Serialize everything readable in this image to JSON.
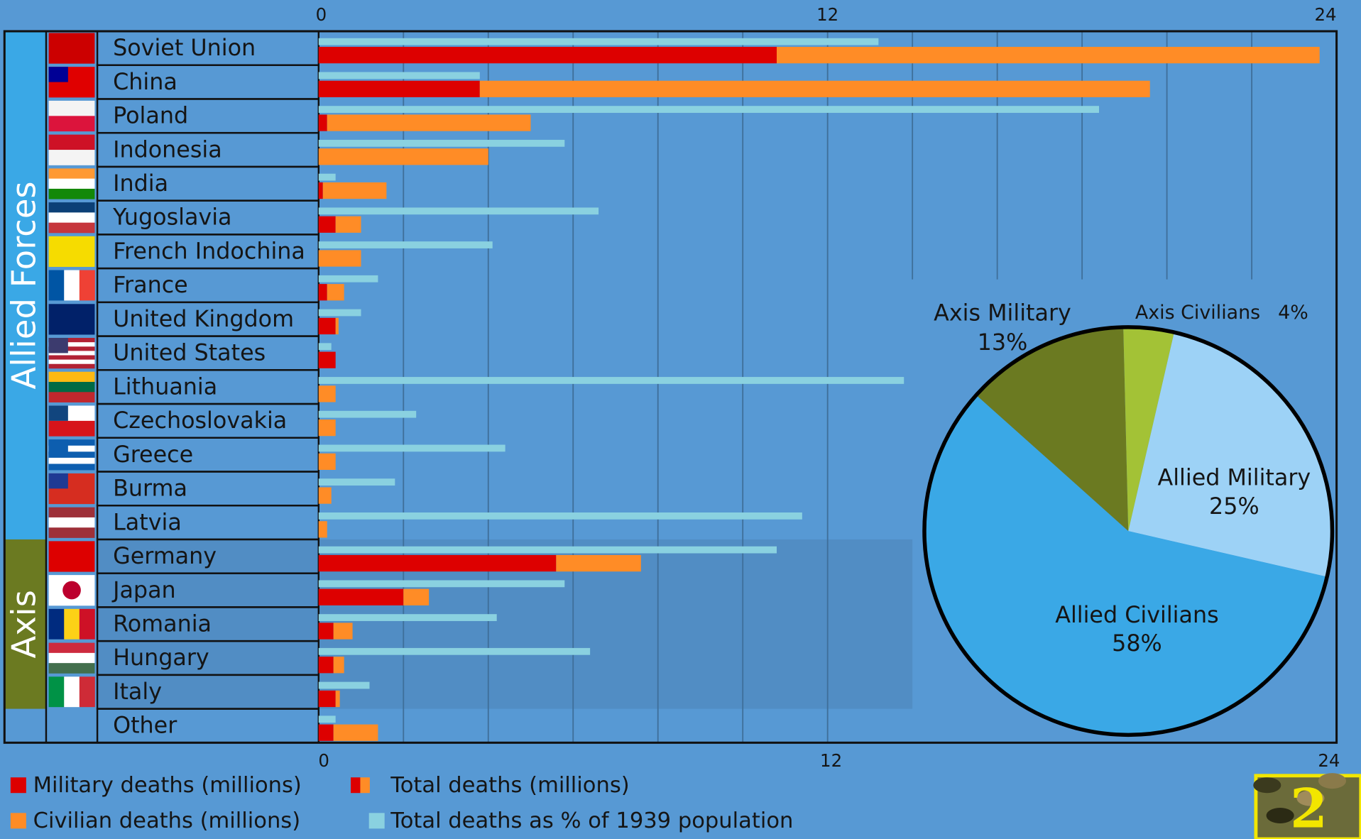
{
  "chart_data": [
    {
      "type": "bar",
      "categories": [
        "Soviet Union",
        "China",
        "Poland",
        "Indonesia",
        "India",
        "Yugoslavia",
        "French Indochina",
        "France",
        "United Kingdom",
        "United States",
        "Lithuania",
        "Czechoslovakia",
        "Greece",
        "Burma",
        "Latvia",
        "Germany",
        "Japan",
        "Romania",
        "Hungary",
        "Italy",
        "Other"
      ],
      "groups": [
        {
          "name": "Allied Forces",
          "count": 15,
          "color": "#3aa8e6"
        },
        {
          "name": "Axis",
          "count": 5,
          "color": "#6b7a21"
        }
      ],
      "series": [
        {
          "name": "Military deaths (millions)",
          "color": "#dd0000",
          "values": [
            10.8,
            3.8,
            0.2,
            0,
            0.1,
            0.4,
            0,
            0.2,
            0.4,
            0.4,
            0,
            0,
            0,
            0,
            0,
            5.6,
            2.0,
            0.35,
            0.35,
            0.4,
            0.35
          ]
        },
        {
          "name": "Civilian deaths (millions)",
          "color": "#ff8c26",
          "values": [
            12.8,
            15.8,
            4.8,
            4.0,
            1.5,
            0.6,
            1.0,
            0.4,
            0.07,
            0,
            0.4,
            0.4,
            0.4,
            0.3,
            0.2,
            2.0,
            0.6,
            0.45,
            0.25,
            0.1,
            1.05
          ]
        },
        {
          "name": "Total deaths as % of 1939 population",
          "color": "#8ad1e0",
          "values": [
            13.2,
            3.8,
            18.4,
            5.8,
            0.4,
            6.6,
            4.1,
            1.4,
            1.0,
            0.3,
            13.8,
            2.3,
            4.4,
            1.8,
            11.4,
            10.8,
            5.8,
            4.2,
            6.4,
            1.2,
            0.4
          ]
        }
      ],
      "total_label": "Total deaths (millions)",
      "xlim": [
        0,
        24
      ],
      "xticks": [
        0,
        12,
        24
      ],
      "xgrid": [
        2,
        4,
        6,
        8,
        10,
        12,
        14,
        16,
        18,
        20,
        22
      ]
    },
    {
      "type": "pie",
      "categories": [
        "Allied Military",
        "Allied Civilians",
        "Axis Military",
        "Axis Civilians"
      ],
      "values": [
        25,
        58,
        13,
        4
      ],
      "value_labels": [
        "25%",
        "58%",
        "13%",
        "4%"
      ],
      "colors": [
        "#9dd2f6",
        "#3aa8e6",
        "#6b7a21",
        "#a3c236"
      ]
    }
  ],
  "logo_text": "2"
}
